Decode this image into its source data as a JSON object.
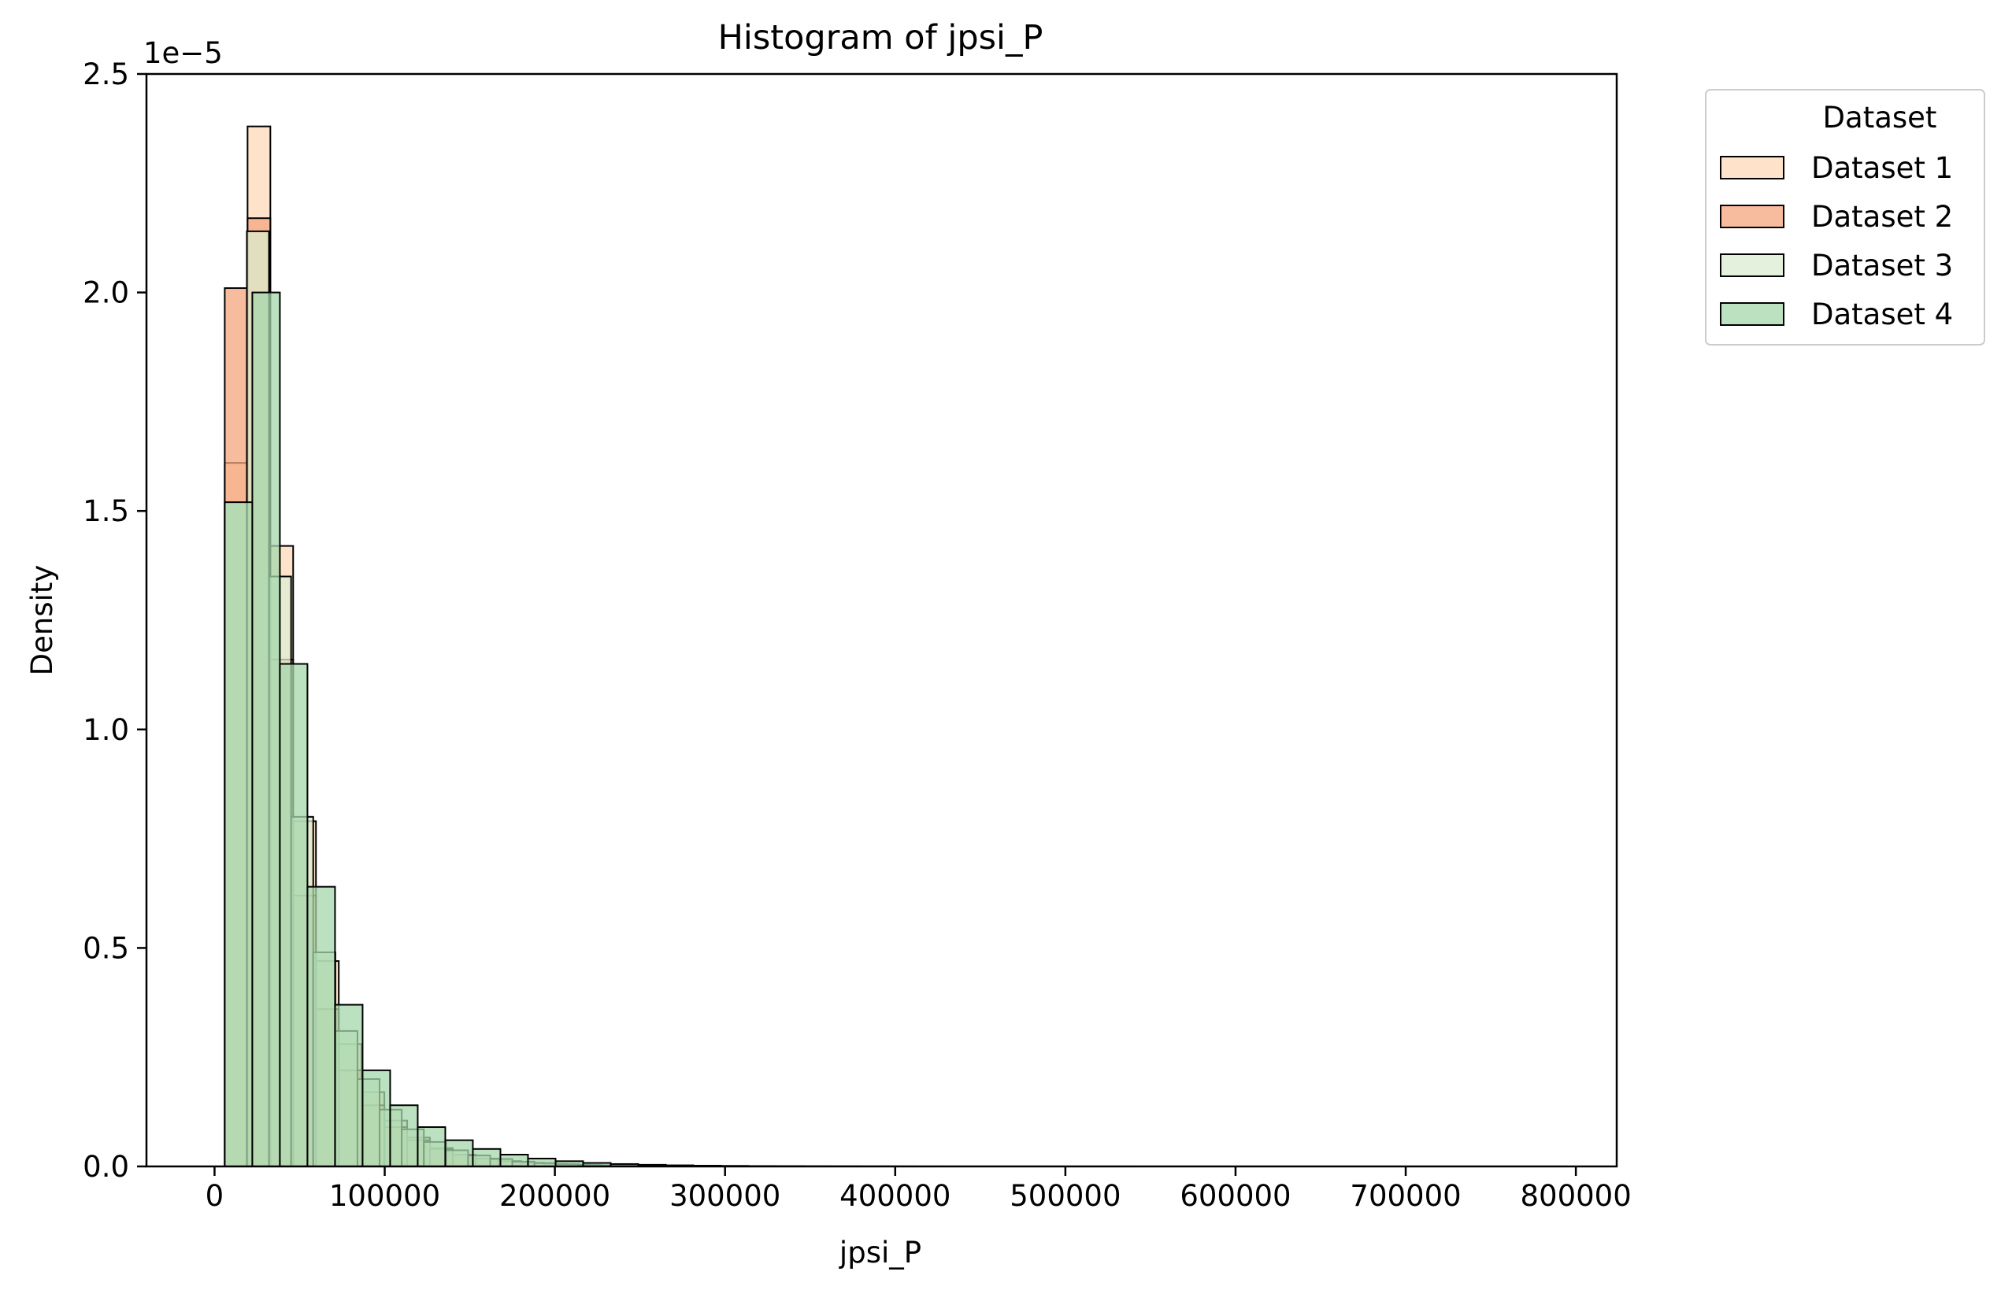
{
  "chart_data": {
    "type": "bar",
    "title": "Histogram of jpsi_P",
    "xlabel": "jpsi_P",
    "ylabel": "Density",
    "y_offset_label": "1e−5",
    "xlim": [
      -40000,
      824000
    ],
    "ylim": [
      0,
      2.5e-05
    ],
    "x_ticks": [
      0,
      100000,
      200000,
      300000,
      400000,
      500000,
      600000,
      700000,
      800000
    ],
    "x_tick_labels": [
      "0",
      "100000",
      "200000",
      "300000",
      "400000",
      "500000",
      "600000",
      "700000",
      "800000"
    ],
    "y_ticks": [
      0,
      5e-06,
      1e-05,
      1.5e-05,
      2e-05,
      2.5e-05
    ],
    "y_tick_labels": [
      "0.0",
      "0.5",
      "1.0",
      "1.5",
      "2.0",
      "2.5"
    ],
    "grid": false,
    "legend": {
      "title": "Dataset",
      "placement": "outside-upper-right"
    },
    "series": [
      {
        "name": "Dataset 1",
        "color": "#fdd9b8",
        "x_start": 6000,
        "bin_width": 13400,
        "values": [
          1.61e-05,
          2.38e-05,
          1.42e-05,
          7.9e-06,
          4.7e-06,
          2.8e-06,
          1.7e-06,
          1.05e-06,
          6.6e-07,
          4.2e-07,
          2.7e-07,
          1.8e-07,
          1.2e-07,
          8e-08,
          5.5e-08,
          3.8e-08,
          2.6e-08,
          1.8e-08,
          1.3e-08,
          9e-09,
          6e-09,
          4e-09,
          3e-09,
          2e-09,
          1.5e-09,
          1e-09,
          8e-10,
          6e-10,
          4e-10,
          3e-10
        ]
      },
      {
        "name": "Dataset 2",
        "color": "#f4a57e",
        "x_start": 6000,
        "bin_width": 13400,
        "values": [
          2.01e-05,
          2.17e-05,
          1.16e-05,
          6.2e-06,
          3.6e-06,
          2.2e-06,
          1.4e-06,
          9e-07,
          6e-07,
          4e-07,
          2.7e-07,
          1.8e-07,
          1.2e-07,
          8e-08,
          5.5e-08,
          3.8e-08,
          2.6e-08,
          1.8e-08,
          1.3e-08,
          9e-09,
          6e-09,
          4e-09,
          3e-09,
          2e-09,
          1.5e-09,
          1e-09,
          8e-10,
          6e-10,
          4e-10,
          3e-10
        ]
      },
      {
        "name": "Dataset 3",
        "color": "#dbeed2",
        "x_start": 6000,
        "bin_width": 13000,
        "values": [
          1.52e-05,
          2.14e-05,
          1.35e-05,
          8e-06,
          4.9e-06,
          3.1e-06,
          2e-06,
          1.3e-06,
          8.5e-07,
          5.6e-07,
          3.7e-07,
          2.5e-07,
          1.7e-07,
          1.1e-07,
          7.6e-08,
          5.1e-08,
          3.5e-08,
          2.4e-08,
          1.6e-08,
          1.1e-08,
          7.5e-09,
          5e-09,
          3.5e-09,
          2.4e-09,
          1.6e-09,
          1.1e-09,
          8e-10,
          5e-10,
          3.5e-10,
          2.5e-10
        ]
      },
      {
        "name": "Dataset 4",
        "color": "#a6d7ab",
        "x_start": 6000,
        "bin_width": 16200,
        "values": [
          1.52e-05,
          2e-05,
          1.15e-05,
          6.4e-06,
          3.7e-06,
          2.2e-06,
          1.4e-06,
          9e-07,
          6e-07,
          4e-07,
          2.7e-07,
          1.8e-07,
          1.2e-07,
          8e-08,
          5.5e-08,
          3.8e-08,
          2.6e-08,
          1.8e-08,
          1.3e-08,
          9e-09,
          6e-09,
          4e-09,
          3e-09,
          2e-09,
          1.5e-09,
          1e-09,
          8e-10,
          6e-10,
          4e-10,
          3e-10,
          2e-10,
          1.5e-10,
          1e-10,
          8e-11,
          6e-11,
          4e-11,
          3e-11,
          2e-11,
          1.5e-11,
          1e-11,
          8e-12,
          6e-12,
          4e-12,
          3e-12,
          2e-12,
          1.5e-12,
          1e-12,
          8e-13
        ]
      }
    ]
  }
}
